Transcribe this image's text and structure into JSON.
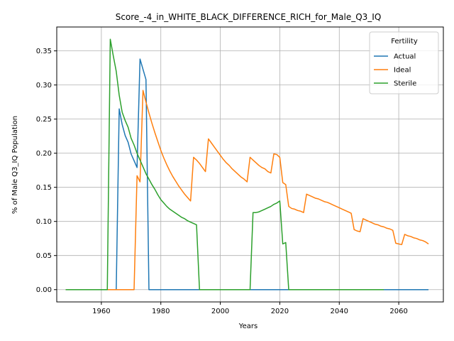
{
  "chart_data": {
    "type": "line",
    "title": "Score_-4_in_WHITE_BLACK_DIFFERENCE_RICH_for_Male_Q3_IQ",
    "xlabel": "Years",
    "ylabel": "% of Male Q3_IQ Population",
    "xlim": [
      1945,
      2075
    ],
    "ylim": [
      -0.018,
      0.385
    ],
    "xticks": [
      1960,
      1980,
      2000,
      2020,
      2040,
      2060
    ],
    "yticks": [
      0.0,
      0.05,
      0.1,
      0.15,
      0.2,
      0.25,
      0.3,
      0.35
    ],
    "ytick_labels": [
      "0.00",
      "0.05",
      "0.10",
      "0.15",
      "0.20",
      "0.25",
      "0.30",
      "0.35"
    ],
    "grid": true,
    "legend": {
      "title": "Fertility",
      "placement": "top-right"
    },
    "series": [
      {
        "name": "Actual",
        "color": "#1f77b4",
        "points": [
          [
            1948,
            0
          ],
          [
            1965,
            0
          ],
          [
            1966,
            0.265
          ],
          [
            1967,
            0.242
          ],
          [
            1968,
            0.226
          ],
          [
            1969,
            0.216
          ],
          [
            1970,
            0.199
          ],
          [
            1971,
            0.189
          ],
          [
            1972,
            0.179
          ],
          [
            1973,
            0.338
          ],
          [
            1974,
            0.323
          ],
          [
            1975,
            0.308
          ],
          [
            1976,
            0
          ],
          [
            1980,
            0
          ],
          [
            2000,
            0
          ],
          [
            2020,
            0
          ],
          [
            2040,
            0
          ],
          [
            2060,
            0
          ],
          [
            2070,
            0
          ]
        ]
      },
      {
        "name": "Ideal",
        "color": "#ff7f0e",
        "points": [
          [
            1948,
            0
          ],
          [
            1971,
            0
          ],
          [
            1972,
            0.167
          ],
          [
            1973,
            0.158
          ],
          [
            1974,
            0.292
          ],
          [
            1975,
            0.275
          ],
          [
            1976,
            0.259
          ],
          [
            1977,
            0.244
          ],
          [
            1978,
            0.23
          ],
          [
            1979,
            0.217
          ],
          [
            1980,
            0.204
          ],
          [
            1981,
            0.193
          ],
          [
            1982,
            0.183
          ],
          [
            1983,
            0.174
          ],
          [
            1984,
            0.166
          ],
          [
            1985,
            0.159
          ],
          [
            1986,
            0.152
          ],
          [
            1987,
            0.146
          ],
          [
            1988,
            0.14
          ],
          [
            1989,
            0.135
          ],
          [
            1990,
            0.13
          ],
          [
            1991,
            0.194
          ],
          [
            1992,
            0.19
          ],
          [
            1993,
            0.185
          ],
          [
            1994,
            0.179
          ],
          [
            1995,
            0.173
          ],
          [
            1996,
            0.221
          ],
          [
            1997,
            0.215
          ],
          [
            1998,
            0.209
          ],
          [
            1999,
            0.203
          ],
          [
            2000,
            0.197
          ],
          [
            2001,
            0.191
          ],
          [
            2002,
            0.186
          ],
          [
            2003,
            0.182
          ],
          [
            2004,
            0.177
          ],
          [
            2005,
            0.173
          ],
          [
            2006,
            0.169
          ],
          [
            2007,
            0.165
          ],
          [
            2008,
            0.162
          ],
          [
            2009,
            0.158
          ],
          [
            2010,
            0.194
          ],
          [
            2011,
            0.19
          ],
          [
            2012,
            0.186
          ],
          [
            2013,
            0.182
          ],
          [
            2014,
            0.179
          ],
          [
            2015,
            0.177
          ],
          [
            2016,
            0.173
          ],
          [
            2017,
            0.171
          ],
          [
            2018,
            0.199
          ],
          [
            2019,
            0.198
          ],
          [
            2020,
            0.194
          ],
          [
            2021,
            0.157
          ],
          [
            2022,
            0.154
          ],
          [
            2023,
            0.122
          ],
          [
            2024,
            0.119
          ],
          [
            2025,
            0.118
          ],
          [
            2026,
            0.116
          ],
          [
            2027,
            0.115
          ],
          [
            2028,
            0.113
          ],
          [
            2029,
            0.14
          ],
          [
            2030,
            0.138
          ],
          [
            2031,
            0.136
          ],
          [
            2032,
            0.134
          ],
          [
            2033,
            0.133
          ],
          [
            2034,
            0.131
          ],
          [
            2035,
            0.129
          ],
          [
            2036,
            0.128
          ],
          [
            2037,
            0.126
          ],
          [
            2038,
            0.124
          ],
          [
            2039,
            0.122
          ],
          [
            2040,
            0.12
          ],
          [
            2041,
            0.118
          ],
          [
            2042,
            0.116
          ],
          [
            2043,
            0.114
          ],
          [
            2044,
            0.112
          ],
          [
            2045,
            0.088
          ],
          [
            2046,
            0.086
          ],
          [
            2047,
            0.085
          ],
          [
            2048,
            0.104
          ],
          [
            2049,
            0.102
          ],
          [
            2050,
            0.1
          ],
          [
            2051,
            0.098
          ],
          [
            2052,
            0.096
          ],
          [
            2053,
            0.095
          ],
          [
            2054,
            0.093
          ],
          [
            2055,
            0.092
          ],
          [
            2056,
            0.09
          ],
          [
            2057,
            0.089
          ],
          [
            2058,
            0.087
          ],
          [
            2059,
            0.068
          ],
          [
            2060,
            0.067
          ],
          [
            2061,
            0.066
          ],
          [
            2062,
            0.081
          ],
          [
            2063,
            0.079
          ],
          [
            2064,
            0.078
          ],
          [
            2065,
            0.076
          ],
          [
            2066,
            0.075
          ],
          [
            2067,
            0.073
          ],
          [
            2068,
            0.072
          ],
          [
            2069,
            0.07
          ],
          [
            2070,
            0.067
          ]
        ]
      },
      {
        "name": "Sterile",
        "color": "#2ca02c",
        "points": [
          [
            1948,
            0
          ],
          [
            1962,
            0
          ],
          [
            1963,
            0.367
          ],
          [
            1964,
            0.343
          ],
          [
            1965,
            0.32
          ],
          [
            1966,
            0.285
          ],
          [
            1967,
            0.26
          ],
          [
            1968,
            0.248
          ],
          [
            1969,
            0.238
          ],
          [
            1970,
            0.222
          ],
          [
            1971,
            0.212
          ],
          [
            1972,
            0.2
          ],
          [
            1973,
            0.19
          ],
          [
            1974,
            0.18
          ],
          [
            1975,
            0.17
          ],
          [
            1976,
            0.162
          ],
          [
            1977,
            0.154
          ],
          [
            1978,
            0.147
          ],
          [
            1979,
            0.139
          ],
          [
            1980,
            0.132
          ],
          [
            1981,
            0.127
          ],
          [
            1982,
            0.122
          ],
          [
            1983,
            0.118
          ],
          [
            1984,
            0.115
          ],
          [
            1985,
            0.112
          ],
          [
            1986,
            0.109
          ],
          [
            1987,
            0.106
          ],
          [
            1988,
            0.104
          ],
          [
            1989,
            0.101
          ],
          [
            1990,
            0.099
          ],
          [
            1991,
            0.097
          ],
          [
            1992,
            0.095
          ],
          [
            1993,
            0
          ],
          [
            2010,
            0
          ],
          [
            2011,
            0.113
          ],
          [
            2012,
            0.113
          ],
          [
            2013,
            0.114
          ],
          [
            2014,
            0.116
          ],
          [
            2015,
            0.118
          ],
          [
            2016,
            0.12
          ],
          [
            2017,
            0.122
          ],
          [
            2018,
            0.125
          ],
          [
            2019,
            0.127
          ],
          [
            2020,
            0.13
          ],
          [
            2021,
            0.067
          ],
          [
            2022,
            0.069
          ],
          [
            2023,
            0
          ],
          [
            2040,
            0
          ],
          [
            2055,
            0
          ]
        ]
      }
    ]
  }
}
